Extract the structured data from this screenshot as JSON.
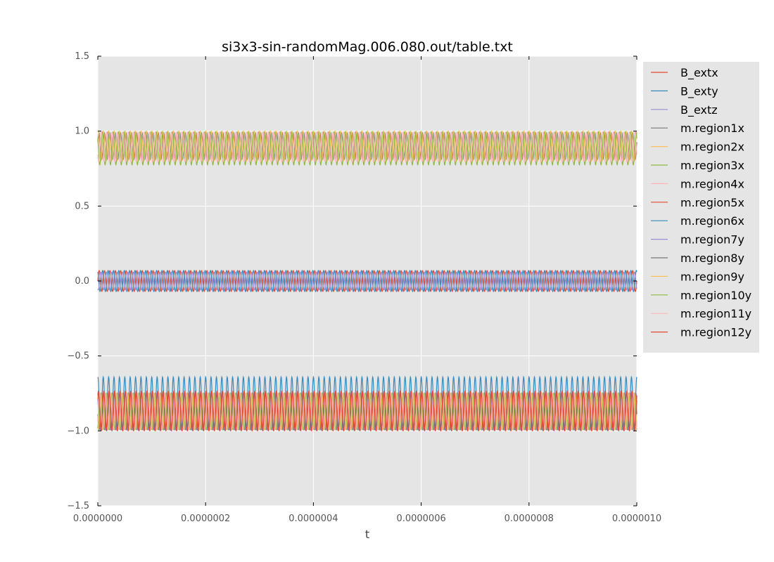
{
  "chart_data": {
    "type": "line",
    "title": "si3x3-sin-randomMag.006.080.out/table.txt",
    "xlabel": "t",
    "ylabel": "",
    "xlim": [
      0,
      1e-06
    ],
    "ylim": [
      -1.5,
      1.5
    ],
    "x_ticks": [
      "0.0000000",
      "0.0000002",
      "0.0000004",
      "0.0000006",
      "0.0000008",
      "0.0000010"
    ],
    "y_ticks": [
      "1.5",
      "1.0",
      "0.5",
      "0.0",
      "−0.5",
      "−1.0",
      "−1.5"
    ],
    "x_tick_values": [
      0,
      2e-07,
      4e-07,
      6e-07,
      8e-07,
      1e-06
    ],
    "y_tick_values": [
      1.5,
      1.0,
      0.5,
      0.0,
      -0.5,
      -1.0,
      -1.5
    ],
    "grid": true,
    "legend_position": "outside-right",
    "oscillation_cycles": 100,
    "series": [
      {
        "name": "B_extx",
        "color": "#E24A33",
        "center": 0.0,
        "amplitude": 0.07,
        "phase": 0.0
      },
      {
        "name": "B_exty",
        "color": "#348ABD",
        "center": 0.0,
        "amplitude": 0.07,
        "phase": 2.1
      },
      {
        "name": "B_extz",
        "color": "#988ED5",
        "center": 0.0,
        "amplitude": 0.06,
        "phase": 4.2
      },
      {
        "name": "m.region1x",
        "color": "#777777",
        "center": 0.9,
        "amplitude": 0.09,
        "phase": 0.3
      },
      {
        "name": "m.region2x",
        "color": "#FBC15E",
        "center": 0.9,
        "amplitude": 0.1,
        "phase": 1.2
      },
      {
        "name": "m.region3x",
        "color": "#8EBA42",
        "center": 0.885,
        "amplitude": 0.11,
        "phase": 2.5
      },
      {
        "name": "m.region4x",
        "color": "#FFB5B8",
        "center": 0.895,
        "amplitude": 0.1,
        "phase": 3.7
      },
      {
        "name": "m.region5x",
        "color": "#E24A33",
        "center": -0.87,
        "amplitude": 0.13,
        "phase": 0.6
      },
      {
        "name": "m.region6x",
        "color": "#348ABD",
        "center": -0.815,
        "amplitude": 0.175,
        "phase": 1.5
      },
      {
        "name": "m.region7y",
        "color": "#988ED5",
        "center": -0.87,
        "amplitude": 0.12,
        "phase": 2.4
      },
      {
        "name": "m.region8y",
        "color": "#777777",
        "center": -0.87,
        "amplitude": 0.12,
        "phase": 3.3
      },
      {
        "name": "m.region9y",
        "color": "#FBC15E",
        "center": -0.87,
        "amplitude": 0.12,
        "phase": 4.2
      },
      {
        "name": "m.region10y",
        "color": "#8EBA42",
        "center": -0.87,
        "amplitude": 0.12,
        "phase": 5.1
      },
      {
        "name": "m.region11y",
        "color": "#FFB5B8",
        "center": -0.87,
        "amplitude": 0.12,
        "phase": 5.7
      },
      {
        "name": "m.region12y",
        "color": "#E24A33",
        "center": -0.865,
        "amplitude": 0.13,
        "phase": 0.9
      }
    ]
  },
  "colors": {
    "plot_background": "#E5E5E5",
    "legend_background": "#E5E5E5",
    "grid": "#FFFFFF"
  }
}
